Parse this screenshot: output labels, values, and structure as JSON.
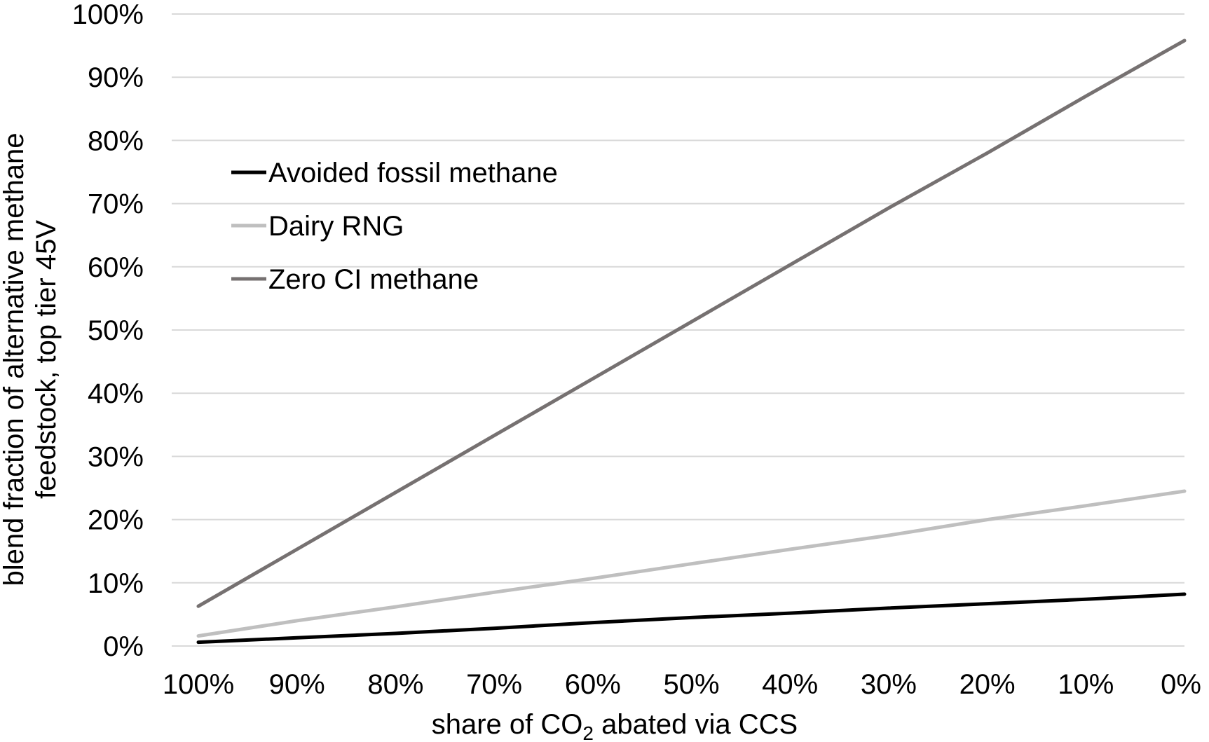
{
  "chart_data": {
    "type": "line",
    "x": [
      1.0,
      0.9,
      0.8,
      0.7,
      0.6,
      0.5,
      0.4,
      0.3,
      0.2,
      0.1,
      0.0
    ],
    "x_tick_labels": [
      "100%",
      "90%",
      "80%",
      "70%",
      "60%",
      "50%",
      "40%",
      "30%",
      "20%",
      "10%",
      "0%"
    ],
    "x_reversed": true,
    "y_ticks": [
      0,
      0.1,
      0.2,
      0.3,
      0.4,
      0.5,
      0.6,
      0.7,
      0.8,
      0.9,
      1.0
    ],
    "y_tick_labels": [
      "0%",
      "10%",
      "20%",
      "30%",
      "40%",
      "50%",
      "60%",
      "70%",
      "80%",
      "90%",
      "100%"
    ],
    "ylim": [
      0,
      1.0
    ],
    "xlabel_parts": [
      "share of CO",
      "2",
      " abated via CCS"
    ],
    "ylabel_lines": [
      "blend fraction of alternative methane",
      "feedstock, top tier 45V"
    ],
    "grid": "horizontal",
    "legend_position": "upper-left",
    "series": [
      {
        "name": "Avoided fossil methane",
        "color": "#000000",
        "values": [
          0.006,
          0.013,
          0.02,
          0.028,
          0.037,
          0.045,
          0.052,
          0.06,
          0.067,
          0.074,
          0.082
        ]
      },
      {
        "name": "Dairy RNG",
        "color": "#bfbfbf",
        "values": [
          0.016,
          0.04,
          0.062,
          0.085,
          0.107,
          0.13,
          0.153,
          0.175,
          0.2,
          0.222,
          0.245
        ]
      },
      {
        "name": "Zero CI methane",
        "color": "#767171",
        "values": [
          0.063,
          0.153,
          0.243,
          0.333,
          0.423,
          0.513,
          0.603,
          0.693,
          0.78,
          0.87,
          0.958
        ]
      }
    ]
  }
}
